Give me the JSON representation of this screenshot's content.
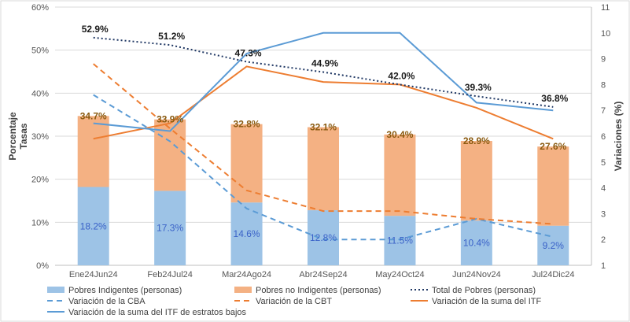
{
  "chart_data": {
    "type": "bar",
    "stacked": true,
    "categories": [
      "Ene24Jun24",
      "Feb24Jul24",
      "Mar24Ago24",
      "Abr24Sep24",
      "May24Oct24",
      "Jun24Nov24",
      "Jul24Dic24"
    ],
    "y_left": {
      "label_line1": "Porcentaje",
      "label_line2": "Tasas",
      "min": 0,
      "max": 60,
      "step": 10,
      "tick_labels": [
        "0%",
        "10%",
        "20%",
        "30%",
        "40%",
        "50%",
        "60%"
      ]
    },
    "y_right": {
      "label": "Variaciones (%)",
      "min": 1,
      "max": 11,
      "step": 1,
      "tick_labels": [
        "1",
        "2",
        "3",
        "4",
        "5",
        "6",
        "7",
        "8",
        "9",
        "10",
        "11"
      ]
    },
    "bars": [
      {
        "name": "Pobres Indigentes (personas)",
        "color": "#9dc3e6",
        "values": [
          18.2,
          17.3,
          14.6,
          12.8,
          11.5,
          10.4,
          9.2
        ],
        "labels": [
          "18.2%",
          "17.3%",
          "14.6%",
          "12.8%",
          "11.5%",
          "10.4%",
          "9.2%"
        ]
      },
      {
        "name": "Pobres no Indigentes (personas)",
        "color": "#f4b183",
        "values": [
          34.7,
          33.9,
          32.8,
          32.1,
          30.4,
          28.9,
          27.6
        ],
        "labels": [
          "34.7%",
          "33.9%",
          "32.8%",
          "32.1%",
          "30.4%",
          "28.9%",
          "27.6%"
        ]
      }
    ],
    "total": {
      "name": "Total de Pobres (personas)",
      "color": "#203864",
      "values": [
        52.9,
        51.2,
        47.3,
        44.9,
        42.0,
        39.3,
        36.8
      ],
      "labels": [
        "52.9%",
        "51.2%",
        "47.3%",
        "44.9%",
        "42.0%",
        "39.3%",
        "36.8%"
      ]
    },
    "lines": [
      {
        "name": "Variación de la CBA",
        "color": "#5b9bd5",
        "dash": "dashed",
        "axis": "right",
        "values": [
          7.6,
          5.8,
          3.2,
          2.0,
          2.0,
          2.8,
          2.1
        ]
      },
      {
        "name": "Variación de la CBT",
        "color": "#ed7d31",
        "dash": "dashed",
        "axis": "right",
        "values": [
          8.8,
          6.3,
          3.9,
          3.1,
          3.1,
          2.8,
          2.6
        ]
      },
      {
        "name": "Variación de la suma del ITF",
        "color": "#ed7d31",
        "dash": "solid",
        "axis": "right",
        "values": [
          5.9,
          6.5,
          8.7,
          8.1,
          8.0,
          7.1,
          5.9
        ]
      },
      {
        "name": "Variación de la suma del ITF de estratos bajos",
        "color": "#5b9bd5",
        "dash": "solid",
        "axis": "right",
        "values": [
          6.5,
          6.2,
          9.2,
          10.0,
          10.0,
          7.3,
          7.0
        ]
      }
    ],
    "legend": [
      {
        "name": "Pobres Indigentes (personas)",
        "kind": "box",
        "color": "#9dc3e6"
      },
      {
        "name": "Pobres no Indigentes (personas)",
        "kind": "box",
        "color": "#f4b183"
      },
      {
        "name": "Total de Pobres (personas)",
        "kind": "dotted",
        "color": "#203864"
      },
      {
        "name": "Variación de la CBA",
        "kind": "dashed",
        "color": "#5b9bd5"
      },
      {
        "name": "Variación de la CBT",
        "kind": "dashed",
        "color": "#ed7d31"
      },
      {
        "name": "Variación de la suma del ITF",
        "kind": "solid",
        "color": "#ed7d31"
      },
      {
        "name": "Variación de la suma del ITF de estratos bajos",
        "kind": "solid",
        "color": "#5b9bd5"
      }
    ],
    "legend_position": "bottom",
    "grid": true
  }
}
